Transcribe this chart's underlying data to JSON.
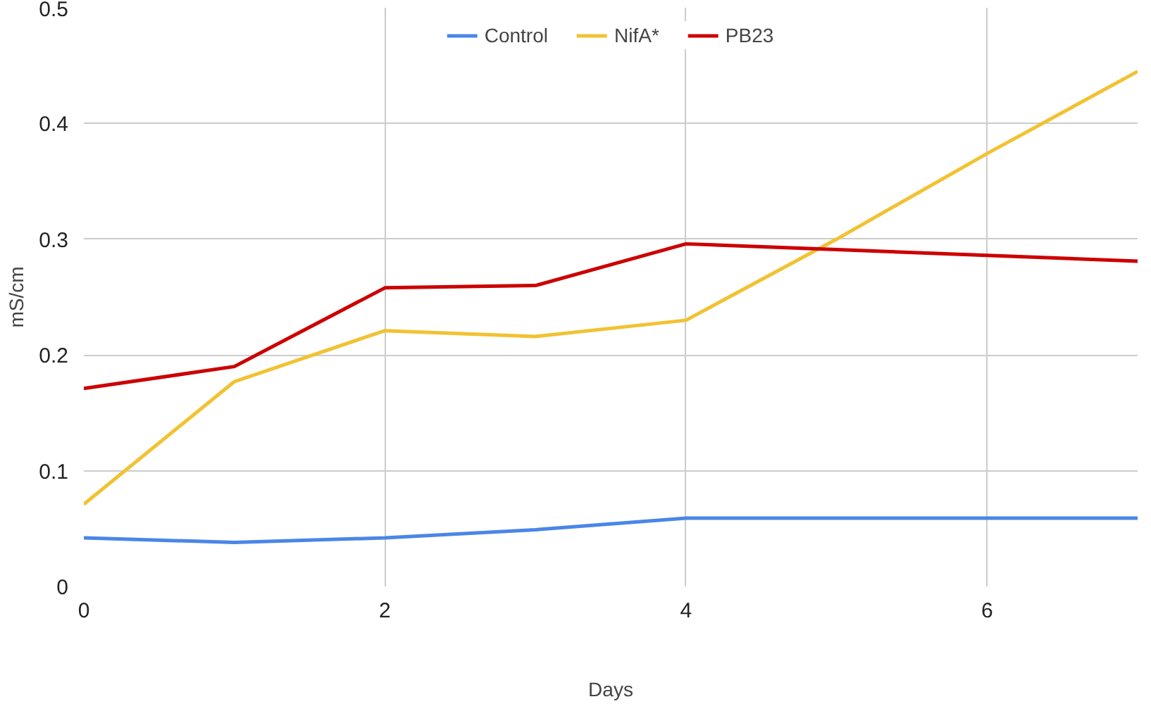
{
  "chart_data": {
    "type": "line",
    "xlabel": "Days",
    "ylabel": "mS/cm",
    "x": [
      0,
      1,
      2,
      3,
      4,
      5,
      6,
      7
    ],
    "series": [
      {
        "name": "Control",
        "color": "#4a86e8",
        "values": [
          0.042,
          0.038,
          0.042,
          0.049,
          0.059,
          0.059,
          0.059,
          0.059
        ]
      },
      {
        "name": "NifA*",
        "color": "#f1c232",
        "values": [
          0.071,
          0.177,
          0.221,
          0.216,
          0.23,
          0.3,
          0.374,
          0.445
        ]
      },
      {
        "name": "PB23",
        "color": "#cc0000",
        "values": [
          0.171,
          0.19,
          0.258,
          0.26,
          0.296,
          0.291,
          0.286,
          0.281
        ]
      }
    ],
    "xlim": [
      0,
      7
    ],
    "ylim": [
      0,
      0.5
    ],
    "xticks": [
      0,
      2,
      4,
      6
    ],
    "yticks": [
      0,
      0.1,
      0.2,
      0.3,
      0.4,
      0.5
    ],
    "grid": true,
    "legend": "top",
    "marker": "none",
    "line_style": "solid"
  }
}
